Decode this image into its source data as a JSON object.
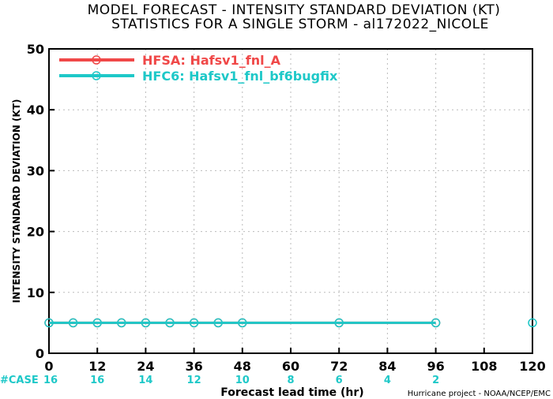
{
  "chart_data": {
    "type": "line",
    "title": "MODEL FORECAST - INTENSITY STANDARD DEVIATION (KT)",
    "subtitle": "STATISTICS FOR A SINGLE STORM - al172022_NICOLE",
    "xlabel": "Forecast lead time (hr)",
    "ylabel": "INTENSITY STANDARD DEVIATION (KT)",
    "xlim": [
      0,
      120
    ],
    "ylim": [
      0,
      50
    ],
    "xticks": [
      0,
      12,
      24,
      36,
      48,
      60,
      72,
      84,
      96,
      108,
      120
    ],
    "yticks": [
      0,
      10,
      20,
      30,
      40,
      50
    ],
    "grid": true,
    "legend_position": "top-left",
    "series": [
      {
        "name": "HFSA: Hafsv1_fnl_A",
        "color": "#f04848",
        "x": [
          0,
          6,
          12,
          18,
          24,
          30,
          36,
          42,
          48,
          72,
          96
        ],
        "y": [
          5,
          5,
          5,
          5,
          5,
          5,
          5,
          5,
          5,
          5,
          5
        ]
      },
      {
        "name": "HFC6: Hafsv1_fnl_bf6bugfix",
        "color": "#1ec8c8",
        "x": [
          0,
          6,
          12,
          18,
          24,
          30,
          36,
          42,
          48,
          72,
          96
        ],
        "y": [
          5,
          5,
          5,
          5,
          5,
          5,
          5,
          5,
          5,
          5,
          5
        ]
      }
    ],
    "extra_points": [
      {
        "x": 120,
        "y": 5,
        "color": "#1ec8c8"
      }
    ],
    "case_label": "#CASE",
    "case_x": [
      0,
      12,
      24,
      36,
      48,
      60,
      72,
      84,
      96
    ],
    "case_counts": [
      "16",
      "16",
      "14",
      "12",
      "10",
      "8",
      "6",
      "4",
      "2"
    ],
    "case_color": "#1ec8c8",
    "credit": "Hurricane project - NOAA/NCEP/EMC"
  }
}
